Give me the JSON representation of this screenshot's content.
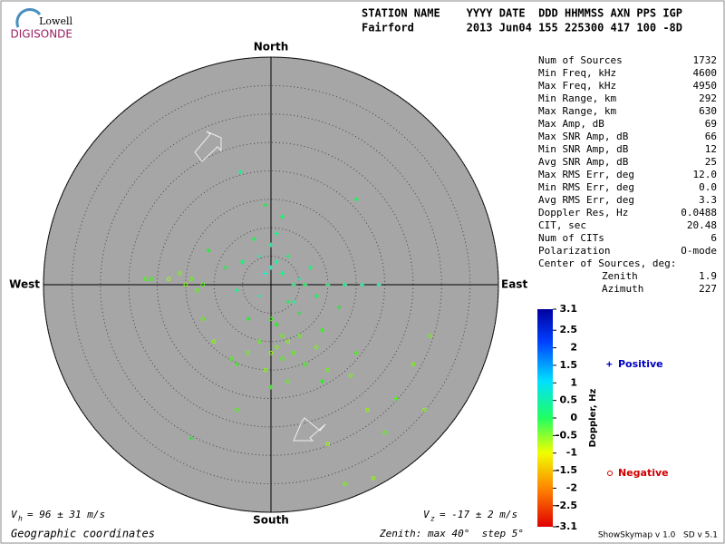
{
  "logo": {
    "top": "Lowell",
    "bottom": "DIGISONDE"
  },
  "header": {
    "columns": "STATION NAME    YYYY DATE  DDD HHMMSS AXN PPS IGP",
    "row": "Fairford        2013 Jun04 155 225300 417 100 -8D"
  },
  "stats": [
    {
      "label": "Num of Sources",
      "value": "1732"
    },
    {
      "label": "Min Freq, kHz",
      "value": "4600"
    },
    {
      "label": "Max Freq, kHz",
      "value": "4950"
    },
    {
      "label": "Min Range, km",
      "value": "292"
    },
    {
      "label": "Max Range, km",
      "value": "630"
    },
    {
      "label": "Max Amp, dB",
      "value": "69"
    },
    {
      "label": "Max SNR Amp, dB",
      "value": "66"
    },
    {
      "label": "Min SNR Amp, dB",
      "value": "12"
    },
    {
      "label": "Avg SNR Amp, dB",
      "value": "25"
    },
    {
      "label": "Max RMS Err, deg",
      "value": "12.0"
    },
    {
      "label": "Min RMS Err, deg",
      "value": "0.0"
    },
    {
      "label": "Avg RMS Err, deg",
      "value": "3.3"
    },
    {
      "label": "Doppler Res, Hz",
      "value": "0.0488"
    },
    {
      "label": "CIT, sec",
      "value": "20.48"
    },
    {
      "label": "Num of CITs",
      "value": "6"
    },
    {
      "label": "Polarization",
      "value": "O-mode"
    }
  ],
  "center": {
    "title": "Center of Sources, deg:",
    "rows": [
      {
        "label": "Zenith",
        "value": "1.9"
      },
      {
        "label": "Azimuth",
        "value": "227"
      }
    ]
  },
  "footer": {
    "vh_v": "V",
    "vh_sub": "h",
    "vh_text": "= 96 ± 31 m/s",
    "vz_v": "V",
    "vz_sub": "z",
    "vz_text": "= -17 ± 2 m/s",
    "coords": "Geographic coordinates",
    "zenith": "Zenith: max 40°  step 5°",
    "version": "ShowSkymap v 1.0   SD v 5.1"
  },
  "chart_data": {
    "type": "scatter",
    "directions": {
      "north": "North",
      "south": "South",
      "east": "East",
      "west": "West"
    },
    "rlim": [
      0,
      40
    ],
    "rticks": [
      5,
      10,
      15,
      20,
      25,
      30,
      35,
      40
    ],
    "colorbar": {
      "label": "Doppler, Hz",
      "lim": [
        -3.1,
        3.1
      ],
      "ticks": [
        3.1,
        2.5,
        2,
        1.5,
        1,
        0.5,
        0,
        -0.5,
        -1,
        -1.5,
        -2,
        -2.5,
        -3.1
      ]
    },
    "series": [
      {
        "name": "Positive",
        "color": "#0000c0",
        "marker": "plus",
        "x": [
          0,
          1,
          2,
          -1,
          3,
          4,
          5,
          6,
          -2,
          0,
          1,
          -3,
          2,
          -1,
          10,
          13,
          16,
          19,
          7,
          8,
          -5,
          -8,
          -11,
          -6,
          -2,
          3,
          5,
          9,
          12,
          -4,
          1,
          -6,
          -5.4,
          15,
          9,
          0,
          15,
          22,
          -14,
          4
        ],
        "y": [
          3,
          4,
          2,
          2,
          5,
          0,
          1,
          0,
          5,
          7,
          9,
          8,
          12,
          14,
          0,
          0,
          0,
          0,
          3,
          -2,
          4,
          3,
          6,
          -1,
          -2,
          -3,
          -5,
          -8,
          -4,
          -6,
          -7,
          -14,
          19.8,
          15,
          -17,
          -18,
          -12,
          -20,
          -27,
          -3
        ],
        "doppler": [
          1.2,
          1.0,
          0.8,
          1.3,
          0.6,
          0.7,
          0.9,
          0.5,
          1.1,
          0.9,
          0.8,
          0.4,
          0.6,
          0.3,
          0.6,
          0.8,
          0.9,
          1.1,
          0.7,
          0.5,
          0.6,
          0.3,
          0.2,
          0.8,
          1.0,
          0.4,
          0.2,
          -0.2,
          0.1,
          0.1,
          0.0,
          -0.2,
          0.9,
          0.5,
          -0.1,
          -0.2,
          -0.3,
          -0.4,
          0.1,
          0.9
        ]
      },
      {
        "name": "Negative",
        "color": "#d00000",
        "marker": "circle",
        "x": [
          -14,
          -15,
          -13,
          -16,
          -12,
          -18,
          -21,
          -22,
          2,
          3,
          1,
          4,
          0,
          2,
          5,
          -2,
          6,
          -4,
          8,
          -1,
          3,
          -7,
          10,
          -10,
          -12,
          0,
          14,
          17,
          27,
          28,
          20,
          13,
          18,
          10,
          25,
          -6
        ],
        "y": [
          1,
          0,
          -1,
          2,
          0,
          1,
          1,
          1,
          -9,
          -10,
          -11,
          -12,
          -12,
          -13,
          -9,
          -10,
          -14,
          -12,
          -11,
          -15,
          -17,
          -13,
          -15,
          -10,
          -6,
          -6,
          -16,
          -22,
          -22,
          -9,
          -26,
          -35,
          -34,
          -28,
          -14,
          -22
        ],
        "doppler": [
          -0.6,
          -0.8,
          -0.5,
          -0.7,
          -0.4,
          -0.9,
          -0.3,
          -0.4,
          -0.6,
          -0.8,
          -0.7,
          -0.5,
          -0.9,
          -0.4,
          -0.6,
          -0.5,
          -0.3,
          -0.6,
          -0.7,
          -0.8,
          -0.5,
          -0.4,
          -0.6,
          -0.8,
          -0.5,
          -0.3,
          -0.7,
          -0.9,
          -0.8,
          -0.6,
          -0.5,
          -0.7,
          -0.9,
          -1.0,
          -0.7,
          -0.4
        ]
      }
    ]
  }
}
